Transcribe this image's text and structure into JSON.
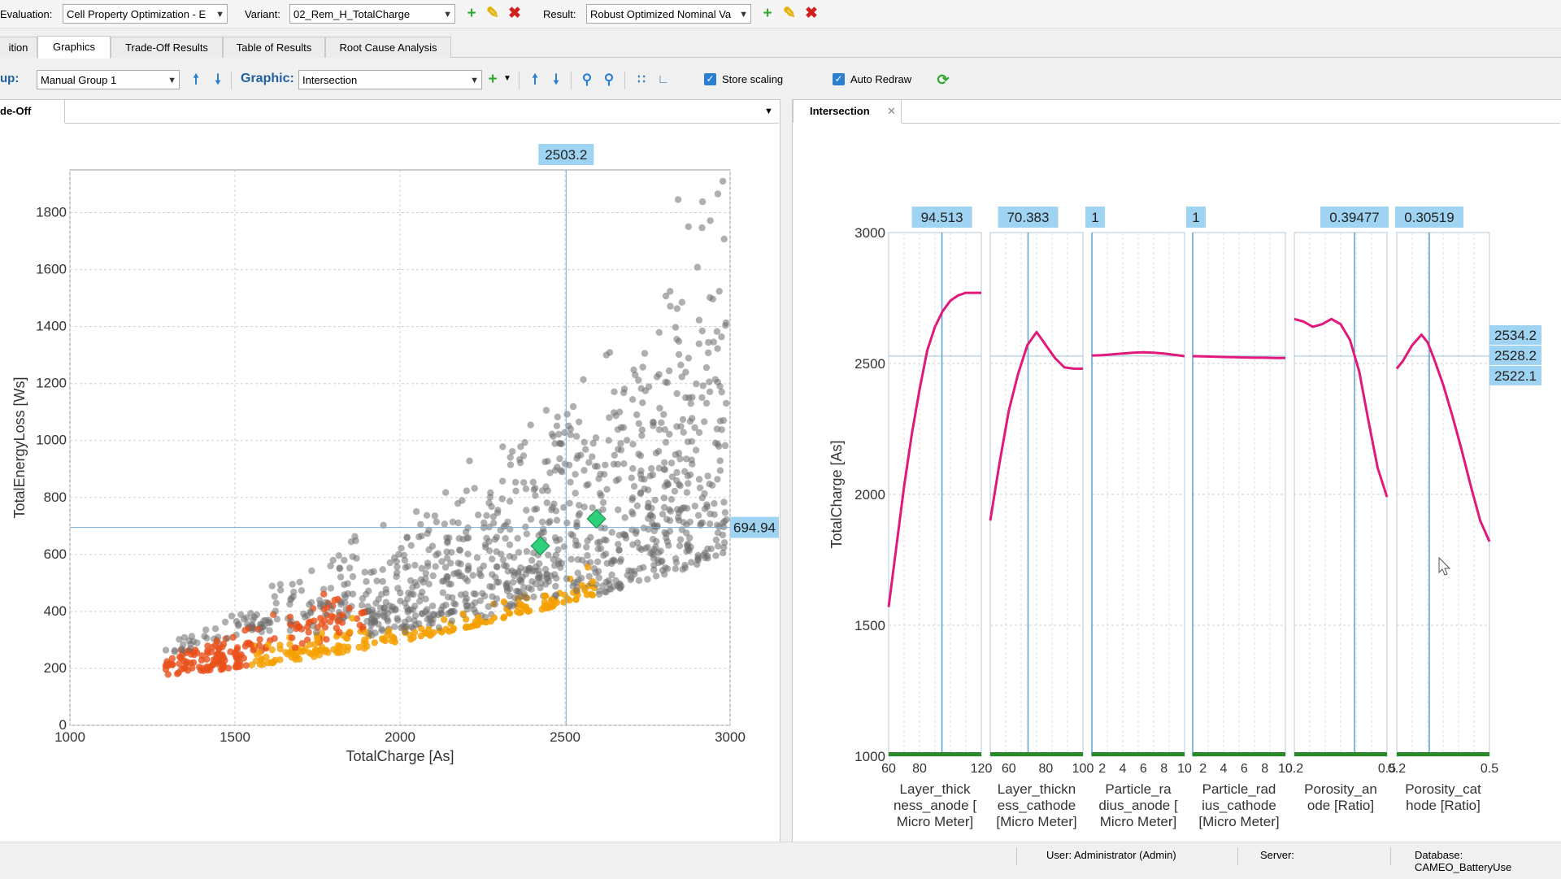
{
  "toolbar": {
    "evaluation_label": "Evaluation:",
    "evaluation_value": "Cell Property Optimization - E",
    "variant_label": "Variant:",
    "variant_value": "02_Rem_H_TotalCharge",
    "result_label": "Result:",
    "result_value": "Robust Optimized Nominal Va"
  },
  "tabs": [
    "ition",
    "Graphics",
    "Trade-Off Results",
    "Table of Results",
    "Root Cause Analysis"
  ],
  "toolbar2": {
    "group_label": "up:",
    "group_value": "Manual Group 1",
    "graphic_label": "Graphic:",
    "graphic_value": "Intersection",
    "store_scaling": "Store scaling",
    "auto_redraw": "Auto Redraw"
  },
  "left_panel": {
    "tab": "de-Off"
  },
  "right_panel": {
    "tab": "Intersection"
  },
  "chart_data": [
    {
      "type": "scatter",
      "xlabel": "TotalCharge  [As]",
      "ylabel": "TotalEnergyLoss  [Ws]",
      "xlim": [
        1000,
        3000
      ],
      "ylim": [
        0,
        1950
      ],
      "xticks": [
        "1000",
        "1500",
        "2000",
        "2500",
        "3000"
      ],
      "yticks": [
        "0",
        "200",
        "400",
        "600",
        "800",
        "1000",
        "1200",
        "1400",
        "1600",
        "1800"
      ],
      "crosshair_x_label": "2503.2",
      "crosshair_y_label": "694.94",
      "crosshair": [
        2503.2,
        694.94
      ],
      "highlight_points": [
        [
          2425,
          630
        ],
        [
          2595,
          725
        ]
      ],
      "point_colors": {
        "dominated": "#6e6e6e",
        "front": "#f5a000",
        "low": "#e8501a",
        "highlight": "#2fd07a"
      },
      "grid": true
    },
    {
      "type": "line",
      "ylabel": "TotalCharge [As]",
      "ylim": [
        1000,
        3000
      ],
      "yticks": [
        "1000",
        "1500",
        "2000",
        "2500",
        "3000"
      ],
      "right_labels": [
        "2534.2",
        "2528.2",
        "2522.1"
      ],
      "line_color": "#e0197a",
      "panels": [
        {
          "top_label": "94.513",
          "xlabel": [
            "Layer_thick",
            "ness_anode [",
            "Micro Meter]"
          ],
          "ticks": [
            "60",
            "80",
            "120"
          ],
          "xlim": [
            60,
            120
          ],
          "cursor": 94.513,
          "x": [
            60,
            65,
            70,
            75,
            80,
            85,
            90,
            95,
            100,
            105,
            110,
            115,
            120
          ],
          "y": [
            1570,
            1800,
            2030,
            2230,
            2400,
            2550,
            2640,
            2700,
            2740,
            2760,
            2770,
            2770,
            2770
          ]
        },
        {
          "top_label": "70.383",
          "xlabel": [
            "Layer_thickn",
            "ess_cathode",
            "[Micro Meter]"
          ],
          "ticks": [
            "60",
            "80",
            "100"
          ],
          "xlim": [
            50,
            100
          ],
          "cursor": 70.383,
          "x": [
            50,
            55,
            60,
            65,
            70,
            75,
            80,
            85,
            90,
            95,
            100
          ],
          "y": [
            1900,
            2120,
            2320,
            2460,
            2570,
            2620,
            2570,
            2520,
            2485,
            2480,
            2480
          ]
        },
        {
          "top_label": "1",
          "xlabel": [
            "Particle_ra",
            "dius_anode [",
            "Micro Meter]"
          ],
          "ticks": [
            "2",
            "4",
            "6",
            "8",
            "10"
          ],
          "xlim": [
            1,
            10
          ],
          "cursor": 1,
          "x": [
            1,
            2,
            3,
            4,
            5,
            6,
            7,
            8,
            9,
            10
          ],
          "y": [
            2530,
            2532,
            2535,
            2538,
            2541,
            2543,
            2541,
            2538,
            2533,
            2528
          ]
        },
        {
          "top_label": "1",
          "xlabel": [
            "Particle_rad",
            "ius_cathode",
            "[Micro Meter]"
          ],
          "ticks": [
            "2",
            "4",
            "6",
            "8",
            "10"
          ],
          "xlim": [
            1,
            10
          ],
          "cursor": 1,
          "x": [
            1,
            2,
            3,
            4,
            5,
            6,
            7,
            8,
            9,
            10
          ],
          "y": [
            2528,
            2527,
            2526,
            2525,
            2524,
            2523,
            2522,
            2522,
            2521,
            2521
          ]
        },
        {
          "top_label": "0.39477",
          "xlabel": [
            "Porosity_an",
            "ode [Ratio]"
          ],
          "ticks": [
            "0.2",
            "0.5"
          ],
          "xlim": [
            0.2,
            0.5
          ],
          "cursor": 0.39477,
          "x": [
            0.2,
            0.23,
            0.26,
            0.29,
            0.32,
            0.35,
            0.38,
            0.41,
            0.44,
            0.47,
            0.5
          ],
          "y": [
            2670,
            2660,
            2640,
            2650,
            2670,
            2650,
            2590,
            2470,
            2280,
            2100,
            1990
          ]
        },
        {
          "top_label": "0.30519",
          "xlabel": [
            "Porosity_cat",
            "hode [Ratio]"
          ],
          "ticks": [
            "0.2",
            "0.5"
          ],
          "xlim": [
            0.2,
            0.5
          ],
          "cursor": 0.30519,
          "x": [
            0.2,
            0.22,
            0.25,
            0.28,
            0.3,
            0.32,
            0.35,
            0.38,
            0.41,
            0.44,
            0.47,
            0.5
          ],
          "y": [
            2480,
            2510,
            2570,
            2610,
            2580,
            2520,
            2420,
            2300,
            2170,
            2030,
            1900,
            1820
          ]
        }
      ]
    }
  ],
  "status": {
    "user": "User: Administrator (Admin)",
    "server": "Server:",
    "database": "Database: CAMEO_BatteryUse"
  }
}
